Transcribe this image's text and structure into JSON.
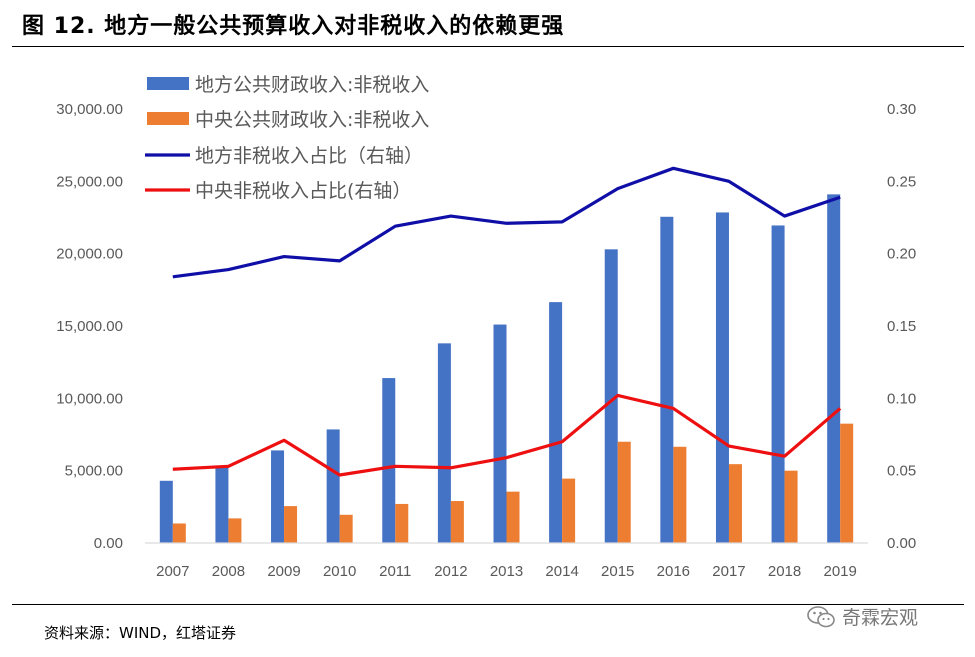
{
  "title": "图 12. 地方一般公共预算收入对非税收入的依赖更强",
  "source": "资料来源：WIND，红塔证券",
  "watermark": "奇霖宏观",
  "colors": {
    "local_bar": "#4472C4",
    "central_bar": "#ED7D31",
    "local_line": "#0F0FA8",
    "central_line": "#EE1010",
    "axis_text": "#595959",
    "axis_line": "#D9D9D9"
  },
  "chart_data": {
    "type": "bar",
    "categories": [
      "2007",
      "2008",
      "2009",
      "2010",
      "2011",
      "2012",
      "2013",
      "2014",
      "2015",
      "2016",
      "2017",
      "2018",
      "2019"
    ],
    "series": [
      {
        "name": "地方公共财政收入:非税收入",
        "kind": "bar",
        "axis": "left",
        "values": [
          4300,
          5300,
          6400,
          7850,
          11400,
          13800,
          15100,
          16650,
          20300,
          22550,
          22850,
          21950,
          24100
        ]
      },
      {
        "name": "中央公共财政收入:非税收入",
        "kind": "bar",
        "axis": "left",
        "values": [
          1350,
          1700,
          2550,
          1950,
          2700,
          2900,
          3550,
          4450,
          7000,
          6650,
          5450,
          5000,
          8250
        ]
      },
      {
        "name": "地方非税收入占比（右轴）",
        "kind": "line",
        "axis": "right",
        "values": [
          0.184,
          0.189,
          0.198,
          0.195,
          0.219,
          0.226,
          0.221,
          0.222,
          0.245,
          0.259,
          0.25,
          0.226,
          0.239
        ]
      },
      {
        "name": "中央非税收入占比(右轴）",
        "kind": "line",
        "axis": "right",
        "values": [
          0.051,
          0.053,
          0.071,
          0.047,
          0.053,
          0.052,
          0.059,
          0.07,
          0.102,
          0.093,
          0.067,
          0.06,
          0.093
        ]
      }
    ],
    "y_left": {
      "min": 0,
      "max": 30000,
      "ticks": [
        "0.00",
        "5,000.00",
        "10,000.00",
        "15,000.00",
        "20,000.00",
        "25,000.00",
        "30,000.00"
      ]
    },
    "y_right": {
      "min": 0,
      "max": 0.3,
      "ticks": [
        "0.00",
        "0.05",
        "0.10",
        "0.15",
        "0.20",
        "0.25",
        "0.30"
      ]
    },
    "legend_position": "top-left",
    "grid": false
  }
}
